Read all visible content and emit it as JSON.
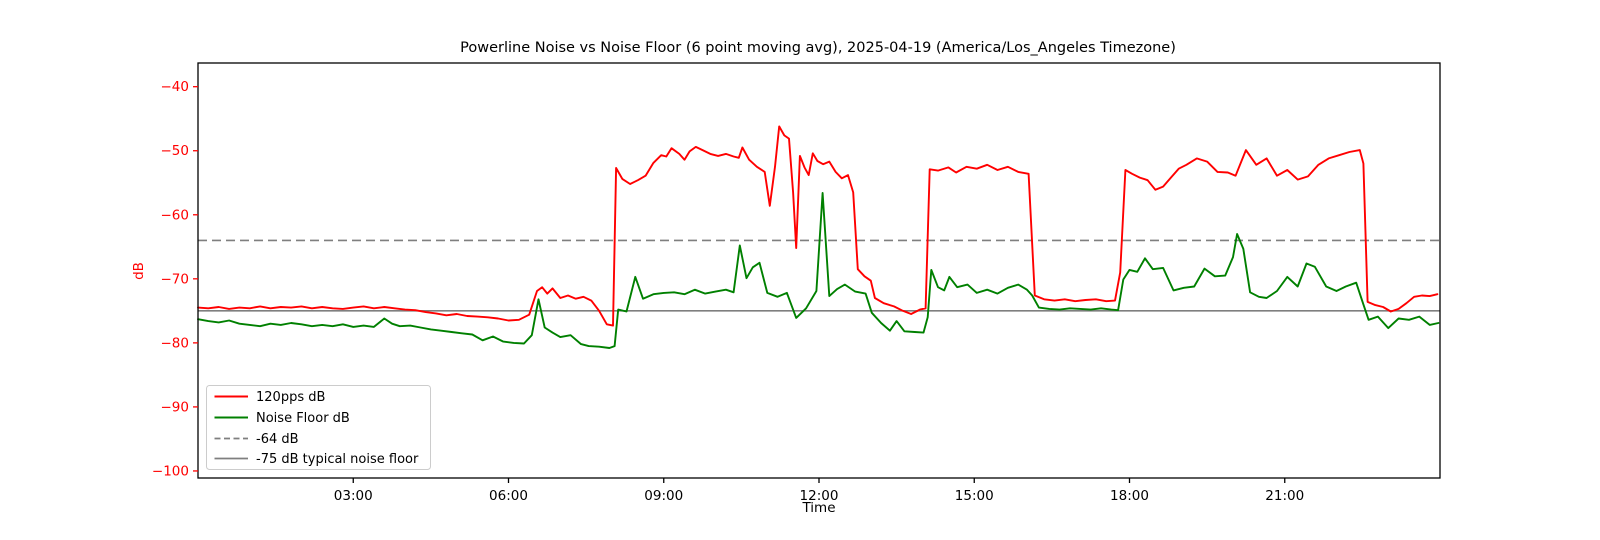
{
  "chart_data": {
    "type": "line",
    "title": "Powerline Noise vs Noise Floor (6 point moving avg), 2025-04-19 (America/Los_Angeles Timezone)",
    "xlabel": "Time",
    "ylabel": "dB",
    "grid": false,
    "legend_position": "lower left",
    "x_axis": {
      "unit": "hours",
      "range": [
        0,
        24
      ],
      "tick_hours": [
        3,
        6,
        9,
        12,
        15,
        18,
        21
      ],
      "tick_labels": [
        "03:00",
        "06:00",
        "09:00",
        "12:00",
        "15:00",
        "18:00",
        "21:00"
      ],
      "tick_color": "#000000"
    },
    "y_axis": {
      "range": [
        -101.1,
        -36.3
      ],
      "ticks": [
        -40,
        -50,
        -60,
        -70,
        -80,
        -90,
        -100
      ],
      "tick_labels": [
        "−40",
        "−50",
        "−60",
        "−70",
        "−80",
        "−90",
        "−100"
      ],
      "tick_color": "#ff0000"
    },
    "reference_lines": [
      {
        "label": "-64 dB",
        "value": -64,
        "style": "dashed",
        "color": "#7f7f7f"
      },
      {
        "label": "-75 dB typical noise floor",
        "value": -75,
        "style": "solid",
        "color": "#7f7f7f"
      }
    ],
    "series": [
      {
        "name": "120pps dB",
        "color": "#ff0000",
        "points": [
          [
            0,
            -74.5
          ],
          [
            0.2,
            -74.6
          ],
          [
            0.4,
            -74.4
          ],
          [
            0.6,
            -74.7
          ],
          [
            0.8,
            -74.5
          ],
          [
            1,
            -74.6
          ],
          [
            1.2,
            -74.3
          ],
          [
            1.4,
            -74.6
          ],
          [
            1.6,
            -74.4
          ],
          [
            1.8,
            -74.5
          ],
          [
            2,
            -74.3
          ],
          [
            2.2,
            -74.6
          ],
          [
            2.4,
            -74.4
          ],
          [
            2.6,
            -74.6
          ],
          [
            2.8,
            -74.7
          ],
          [
            3,
            -74.5
          ],
          [
            3.2,
            -74.3
          ],
          [
            3.4,
            -74.6
          ],
          [
            3.6,
            -74.4
          ],
          [
            3.8,
            -74.6
          ],
          [
            4,
            -74.8
          ],
          [
            4.2,
            -74.9
          ],
          [
            4.4,
            -75.2
          ],
          [
            4.6,
            -75.4
          ],
          [
            4.8,
            -75.7
          ],
          [
            5,
            -75.5
          ],
          [
            5.2,
            -75.8
          ],
          [
            5.4,
            -75.9
          ],
          [
            5.6,
            -76.0
          ],
          [
            5.8,
            -76.2
          ],
          [
            6,
            -76.5
          ],
          [
            6.2,
            -76.4
          ],
          [
            6.4,
            -75.6
          ],
          [
            6.55,
            -71.9
          ],
          [
            6.65,
            -71.3
          ],
          [
            6.75,
            -72.3
          ],
          [
            6.85,
            -71.5
          ],
          [
            7,
            -73.0
          ],
          [
            7.15,
            -72.6
          ],
          [
            7.3,
            -73.1
          ],
          [
            7.45,
            -72.8
          ],
          [
            7.6,
            -73.4
          ],
          [
            7.75,
            -75.0
          ],
          [
            7.9,
            -77.1
          ],
          [
            8.02,
            -77.3
          ],
          [
            8.08,
            -52.7
          ],
          [
            8.2,
            -54.4
          ],
          [
            8.35,
            -55.2
          ],
          [
            8.5,
            -54.6
          ],
          [
            8.65,
            -53.9
          ],
          [
            8.8,
            -51.9
          ],
          [
            8.95,
            -50.7
          ],
          [
            9.05,
            -50.9
          ],
          [
            9.15,
            -49.6
          ],
          [
            9.3,
            -50.5
          ],
          [
            9.4,
            -51.4
          ],
          [
            9.5,
            -50.1
          ],
          [
            9.62,
            -49.4
          ],
          [
            9.75,
            -49.9
          ],
          [
            9.9,
            -50.5
          ],
          [
            10.05,
            -50.8
          ],
          [
            10.2,
            -50.5
          ],
          [
            10.35,
            -50.9
          ],
          [
            10.45,
            -51.1
          ],
          [
            10.52,
            -49.5
          ],
          [
            10.65,
            -51.4
          ],
          [
            10.8,
            -52.5
          ],
          [
            10.95,
            -53.3
          ],
          [
            11.05,
            -58.6
          ],
          [
            11.15,
            -52.5
          ],
          [
            11.23,
            -46.2
          ],
          [
            11.33,
            -47.6
          ],
          [
            11.42,
            -48.1
          ],
          [
            11.5,
            -56.5
          ],
          [
            11.56,
            -65.2
          ],
          [
            11.63,
            -50.8
          ],
          [
            11.72,
            -52.6
          ],
          [
            11.8,
            -53.8
          ],
          [
            11.88,
            -50.4
          ],
          [
            11.97,
            -51.6
          ],
          [
            12.08,
            -52.1
          ],
          [
            12.2,
            -51.7
          ],
          [
            12.32,
            -53.3
          ],
          [
            12.44,
            -54.3
          ],
          [
            12.56,
            -53.8
          ],
          [
            12.66,
            -56.5
          ],
          [
            12.75,
            -68.5
          ],
          [
            12.88,
            -69.6
          ],
          [
            13,
            -70.3
          ],
          [
            13.08,
            -73.0
          ],
          [
            13.25,
            -73.8
          ],
          [
            13.45,
            -74.3
          ],
          [
            13.62,
            -75.0
          ],
          [
            13.78,
            -75.5
          ],
          [
            13.95,
            -74.8
          ],
          [
            14.06,
            -74.6
          ],
          [
            14.14,
            -52.9
          ],
          [
            14.3,
            -53.1
          ],
          [
            14.5,
            -52.6
          ],
          [
            14.65,
            -53.4
          ],
          [
            14.85,
            -52.5
          ],
          [
            15.05,
            -52.8
          ],
          [
            15.25,
            -52.2
          ],
          [
            15.45,
            -53.0
          ],
          [
            15.65,
            -52.5
          ],
          [
            15.85,
            -53.3
          ],
          [
            16.05,
            -53.6
          ],
          [
            16.17,
            -72.6
          ],
          [
            16.35,
            -73.2
          ],
          [
            16.55,
            -73.4
          ],
          [
            16.75,
            -73.2
          ],
          [
            16.95,
            -73.5
          ],
          [
            17.15,
            -73.3
          ],
          [
            17.35,
            -73.2
          ],
          [
            17.55,
            -73.5
          ],
          [
            17.72,
            -73.4
          ],
          [
            17.82,
            -69.0
          ],
          [
            17.92,
            -53.0
          ],
          [
            18.05,
            -53.6
          ],
          [
            18.2,
            -54.2
          ],
          [
            18.35,
            -54.6
          ],
          [
            18.5,
            -56.1
          ],
          [
            18.65,
            -55.6
          ],
          [
            18.8,
            -54.2
          ],
          [
            18.95,
            -52.8
          ],
          [
            19.1,
            -52.2
          ],
          [
            19.3,
            -51.2
          ],
          [
            19.5,
            -51.7
          ],
          [
            19.7,
            -53.3
          ],
          [
            19.9,
            -53.4
          ],
          [
            20.05,
            -53.9
          ],
          [
            20.25,
            -49.9
          ],
          [
            20.45,
            -52.2
          ],
          [
            20.65,
            -51.2
          ],
          [
            20.85,
            -53.9
          ],
          [
            21.05,
            -53.0
          ],
          [
            21.25,
            -54.5
          ],
          [
            21.45,
            -54.0
          ],
          [
            21.65,
            -52.2
          ],
          [
            21.85,
            -51.2
          ],
          [
            22.05,
            -50.7
          ],
          [
            22.25,
            -50.2
          ],
          [
            22.45,
            -49.9
          ],
          [
            22.52,
            -52.0
          ],
          [
            22.6,
            -73.6
          ],
          [
            22.75,
            -74.1
          ],
          [
            22.9,
            -74.4
          ],
          [
            23.05,
            -75.1
          ],
          [
            23.2,
            -74.7
          ],
          [
            23.35,
            -73.8
          ],
          [
            23.5,
            -72.8
          ],
          [
            23.65,
            -72.6
          ],
          [
            23.8,
            -72.7
          ],
          [
            23.95,
            -72.4
          ]
        ]
      },
      {
        "name": "Noise Floor dB",
        "color": "#008000",
        "points": [
          [
            0,
            -76.3
          ],
          [
            0.2,
            -76.6
          ],
          [
            0.4,
            -76.8
          ],
          [
            0.6,
            -76.5
          ],
          [
            0.8,
            -77.0
          ],
          [
            1,
            -77.2
          ],
          [
            1.2,
            -77.4
          ],
          [
            1.4,
            -77.0
          ],
          [
            1.6,
            -77.2
          ],
          [
            1.8,
            -76.9
          ],
          [
            2,
            -77.1
          ],
          [
            2.2,
            -77.4
          ],
          [
            2.4,
            -77.2
          ],
          [
            2.6,
            -77.4
          ],
          [
            2.8,
            -77.1
          ],
          [
            3,
            -77.5
          ],
          [
            3.2,
            -77.3
          ],
          [
            3.4,
            -77.5
          ],
          [
            3.6,
            -76.2
          ],
          [
            3.75,
            -77.0
          ],
          [
            3.9,
            -77.4
          ],
          [
            4.1,
            -77.3
          ],
          [
            4.3,
            -77.6
          ],
          [
            4.5,
            -77.9
          ],
          [
            4.7,
            -78.1
          ],
          [
            4.9,
            -78.3
          ],
          [
            5.1,
            -78.5
          ],
          [
            5.3,
            -78.7
          ],
          [
            5.5,
            -79.6
          ],
          [
            5.7,
            -79.0
          ],
          [
            5.9,
            -79.8
          ],
          [
            6.1,
            -80.0
          ],
          [
            6.3,
            -80.1
          ],
          [
            6.45,
            -78.8
          ],
          [
            6.58,
            -73.2
          ],
          [
            6.7,
            -77.6
          ],
          [
            6.85,
            -78.4
          ],
          [
            7,
            -79.1
          ],
          [
            7.2,
            -78.8
          ],
          [
            7.4,
            -80.2
          ],
          [
            7.55,
            -80.5
          ],
          [
            7.75,
            -80.6
          ],
          [
            7.95,
            -80.8
          ],
          [
            8.05,
            -80.5
          ],
          [
            8.12,
            -74.8
          ],
          [
            8.28,
            -75.1
          ],
          [
            8.45,
            -69.7
          ],
          [
            8.6,
            -73.1
          ],
          [
            8.8,
            -72.4
          ],
          [
            9,
            -72.2
          ],
          [
            9.2,
            -72.1
          ],
          [
            9.4,
            -72.4
          ],
          [
            9.6,
            -71.7
          ],
          [
            9.8,
            -72.3
          ],
          [
            10,
            -72.0
          ],
          [
            10.2,
            -71.7
          ],
          [
            10.35,
            -72.1
          ],
          [
            10.47,
            -64.8
          ],
          [
            10.6,
            -69.9
          ],
          [
            10.72,
            -68.2
          ],
          [
            10.85,
            -67.5
          ],
          [
            11,
            -72.2
          ],
          [
            11.2,
            -72.8
          ],
          [
            11.38,
            -72.2
          ],
          [
            11.56,
            -76.1
          ],
          [
            11.75,
            -74.6
          ],
          [
            11.95,
            -71.9
          ],
          [
            12.07,
            -56.6
          ],
          [
            12.2,
            -72.7
          ],
          [
            12.35,
            -71.6
          ],
          [
            12.5,
            -70.9
          ],
          [
            12.7,
            -72.0
          ],
          [
            12.9,
            -72.3
          ],
          [
            13.02,
            -75.3
          ],
          [
            13.2,
            -76.9
          ],
          [
            13.37,
            -78.1
          ],
          [
            13.5,
            -76.6
          ],
          [
            13.65,
            -78.2
          ],
          [
            13.85,
            -78.3
          ],
          [
            14.02,
            -78.4
          ],
          [
            14.1,
            -76.0
          ],
          [
            14.17,
            -68.6
          ],
          [
            14.3,
            -71.3
          ],
          [
            14.42,
            -71.8
          ],
          [
            14.52,
            -69.7
          ],
          [
            14.67,
            -71.3
          ],
          [
            14.87,
            -70.9
          ],
          [
            15.05,
            -72.2
          ],
          [
            15.25,
            -71.7
          ],
          [
            15.45,
            -72.3
          ],
          [
            15.65,
            -71.4
          ],
          [
            15.85,
            -70.9
          ],
          [
            16.02,
            -71.7
          ],
          [
            16.12,
            -72.6
          ],
          [
            16.25,
            -74.5
          ],
          [
            16.45,
            -74.7
          ],
          [
            16.65,
            -74.8
          ],
          [
            16.85,
            -74.6
          ],
          [
            17.05,
            -74.7
          ],
          [
            17.25,
            -74.8
          ],
          [
            17.45,
            -74.6
          ],
          [
            17.65,
            -74.8
          ],
          [
            17.78,
            -74.9
          ],
          [
            17.88,
            -70.1
          ],
          [
            18,
            -68.6
          ],
          [
            18.15,
            -68.9
          ],
          [
            18.3,
            -66.8
          ],
          [
            18.45,
            -68.5
          ],
          [
            18.65,
            -68.3
          ],
          [
            18.85,
            -71.8
          ],
          [
            19.05,
            -71.4
          ],
          [
            19.25,
            -71.2
          ],
          [
            19.45,
            -68.4
          ],
          [
            19.65,
            -69.6
          ],
          [
            19.85,
            -69.5
          ],
          [
            20,
            -66.6
          ],
          [
            20.08,
            -63.0
          ],
          [
            20.2,
            -65.3
          ],
          [
            20.33,
            -72.1
          ],
          [
            20.5,
            -72.8
          ],
          [
            20.65,
            -73.0
          ],
          [
            20.85,
            -71.9
          ],
          [
            21.05,
            -69.7
          ],
          [
            21.25,
            -71.2
          ],
          [
            21.42,
            -67.6
          ],
          [
            21.58,
            -68.1
          ],
          [
            21.8,
            -71.2
          ],
          [
            22,
            -71.9
          ],
          [
            22.18,
            -71.2
          ],
          [
            22.38,
            -70.6
          ],
          [
            22.52,
            -74.0
          ],
          [
            22.62,
            -76.4
          ],
          [
            22.8,
            -75.9
          ],
          [
            23,
            -77.7
          ],
          [
            23.2,
            -76.2
          ],
          [
            23.4,
            -76.4
          ],
          [
            23.6,
            -75.9
          ],
          [
            23.8,
            -77.2
          ],
          [
            23.97,
            -76.9
          ]
        ]
      }
    ]
  }
}
